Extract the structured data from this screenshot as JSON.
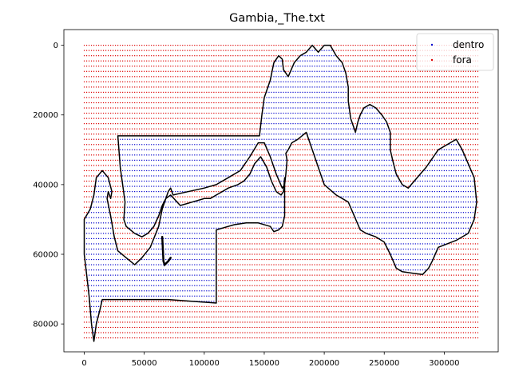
{
  "chart_data": {
    "type": "scatter",
    "title": "Gambia,_The.txt",
    "xlabel": "",
    "ylabel": "",
    "xlim": [
      -17000,
      345000
    ],
    "ylim": [
      88000,
      -4500
    ],
    "y_inverted": true,
    "x_ticks": [
      0,
      50000,
      100000,
      150000,
      200000,
      250000,
      300000
    ],
    "x_tick_labels": [
      "0",
      "50000",
      "100000",
      "150000",
      "200000",
      "250000",
      "300000"
    ],
    "y_ticks": [
      0,
      20000,
      40000,
      60000,
      80000
    ],
    "y_tick_labels": [
      "0",
      "20000",
      "40000",
      "60000",
      "80000"
    ],
    "grid": false,
    "legend": {
      "placement": "top-right"
    },
    "series": [
      {
        "name": "dentro",
        "color": "#0000cc",
        "marker": "dot",
        "description_of_values": "grid points inside the polygon boundary"
      },
      {
        "name": "fora",
        "color": "#dd0000",
        "marker": "dot",
        "description_of_values": "grid points outside the polygon boundary"
      }
    ],
    "point_grid": {
      "x_range": [
        0,
        328000
      ],
      "y_range": [
        0,
        85000
      ],
      "spacing_x": 2000,
      "spacing_y": 1500
    },
    "boundary": {
      "color": "#000000",
      "polygon": [
        [
          0,
          50000
        ],
        [
          5000,
          47000
        ],
        [
          8000,
          43000
        ],
        [
          10000,
          38000
        ],
        [
          15000,
          36000
        ],
        [
          20000,
          38000
        ],
        [
          23000,
          42000
        ],
        [
          22000,
          44000
        ],
        [
          20000,
          42000
        ],
        [
          19000,
          44000
        ],
        [
          22000,
          49000
        ],
        [
          25000,
          55000
        ],
        [
          28000,
          59000
        ],
        [
          35000,
          61000
        ],
        [
          42000,
          63000
        ],
        [
          48000,
          61000
        ],
        [
          55000,
          58000
        ],
        [
          62000,
          52000
        ],
        [
          65000,
          47000
        ],
        [
          70000,
          42000
        ],
        [
          72000,
          41000
        ],
        [
          74000,
          43000
        ],
        [
          80000,
          42500
        ],
        [
          100000,
          41000
        ],
        [
          110000,
          40000
        ],
        [
          120000,
          38000
        ],
        [
          130000,
          36000
        ],
        [
          138000,
          32000
        ],
        [
          145000,
          28000
        ],
        [
          150000,
          28000
        ],
        [
          155000,
          32000
        ],
        [
          160000,
          37000
        ],
        [
          165000,
          41000
        ],
        [
          167000,
          40000
        ],
        [
          168000,
          37000
        ],
        [
          169000,
          33000
        ],
        [
          168000,
          31000
        ],
        [
          170000,
          30000
        ],
        [
          173000,
          28000
        ],
        [
          178000,
          27000
        ],
        [
          185000,
          25000
        ],
        [
          190000,
          30000
        ],
        [
          195000,
          35000
        ],
        [
          200000,
          40000
        ],
        [
          210000,
          43000
        ],
        [
          220000,
          45000
        ],
        [
          225000,
          49000
        ],
        [
          230000,
          53000
        ],
        [
          235000,
          54000
        ],
        [
          243000,
          55000
        ],
        [
          250000,
          56500
        ],
        [
          255000,
          60000
        ],
        [
          260000,
          64000
        ],
        [
          265000,
          65000
        ],
        [
          275000,
          65500
        ],
        [
          282000,
          65800
        ],
        [
          287000,
          64000
        ],
        [
          290000,
          62000
        ],
        [
          295000,
          58000
        ],
        [
          310000,
          56000
        ],
        [
          320000,
          54000
        ],
        [
          325000,
          50000
        ],
        [
          327000,
          45000
        ],
        [
          325000,
          38000
        ],
        [
          320000,
          34000
        ],
        [
          315000,
          30000
        ],
        [
          310000,
          27000
        ],
        [
          305000,
          28000
        ],
        [
          295000,
          30000
        ],
        [
          285000,
          35000
        ],
        [
          280000,
          37000
        ],
        [
          275000,
          39000
        ],
        [
          270000,
          41000
        ],
        [
          265000,
          40000
        ],
        [
          260000,
          37000
        ],
        [
          257000,
          33000
        ],
        [
          255000,
          30000
        ],
        [
          255000,
          25000
        ],
        [
          252000,
          22000
        ],
        [
          248000,
          20000
        ],
        [
          243000,
          18000
        ],
        [
          238000,
          17000
        ],
        [
          233000,
          18000
        ],
        [
          230000,
          20000
        ],
        [
          228000,
          22000
        ],
        [
          226000,
          25000
        ],
        [
          222000,
          21000
        ],
        [
          220000,
          16000
        ],
        [
          220000,
          12000
        ],
        [
          218000,
          8000
        ],
        [
          215000,
          5000
        ],
        [
          210000,
          3000
        ],
        [
          205000,
          0
        ],
        [
          200000,
          0
        ],
        [
          195000,
          2000
        ],
        [
          190000,
          0
        ],
        [
          185000,
          2000
        ],
        [
          180000,
          3000
        ],
        [
          175000,
          5000
        ],
        [
          170000,
          9000
        ],
        [
          166000,
          7000
        ],
        [
          165000,
          4000
        ],
        [
          162000,
          3000
        ],
        [
          158000,
          5000
        ],
        [
          155000,
          10000
        ],
        [
          150000,
          15000
        ],
        [
          148000,
          20000
        ],
        [
          146000,
          26000
        ],
        [
          28000,
          26000
        ],
        [
          30000,
          35000
        ],
        [
          32000,
          40000
        ],
        [
          34000,
          45000
        ],
        [
          33000,
          50000
        ],
        [
          35000,
          52000
        ],
        [
          42000,
          54000
        ],
        [
          48000,
          55000
        ],
        [
          53000,
          54000
        ],
        [
          58000,
          52000
        ],
        [
          62000,
          49000
        ],
        [
          65000,
          46000
        ],
        [
          68000,
          44000
        ],
        [
          72000,
          43000
        ],
        [
          80000,
          46000
        ],
        [
          90000,
          45000
        ],
        [
          100000,
          44000
        ],
        [
          105000,
          44000
        ],
        [
          110000,
          43000
        ],
        [
          115000,
          42000
        ],
        [
          120000,
          41000
        ],
        [
          128000,
          40000
        ],
        [
          133000,
          39000
        ],
        [
          138000,
          37000
        ],
        [
          142000,
          34000
        ],
        [
          147000,
          32000
        ],
        [
          152000,
          35000
        ],
        [
          156000,
          39000
        ],
        [
          160000,
          42000
        ],
        [
          164000,
          43000
        ],
        [
          166000,
          42000
        ],
        [
          167000,
          38000
        ],
        [
          167000,
          45000
        ],
        [
          167000,
          49000
        ],
        [
          165000,
          52000
        ],
        [
          162000,
          53000
        ],
        [
          158000,
          53500
        ],
        [
          155000,
          52000
        ],
        [
          145000,
          51000
        ],
        [
          135000,
          51000
        ],
        [
          125000,
          51500
        ],
        [
          115000,
          52500
        ],
        [
          110000,
          53000
        ],
        [
          110000,
          74000
        ],
        [
          70000,
          73000
        ],
        [
          50000,
          73000
        ],
        [
          25000,
          73000
        ],
        [
          15000,
          73000
        ],
        [
          13000,
          76000
        ],
        [
          10000,
          80000
        ],
        [
          8000,
          85000
        ],
        [
          6000,
          80000
        ],
        [
          4000,
          72000
        ],
        [
          2000,
          66000
        ],
        [
          0,
          60000
        ]
      ],
      "inner_hook": [
        [
          65000,
          55000
        ],
        [
          66000,
          62000
        ],
        [
          67000,
          63000
        ],
        [
          70000,
          62000
        ],
        [
          72000,
          61000
        ]
      ]
    }
  }
}
